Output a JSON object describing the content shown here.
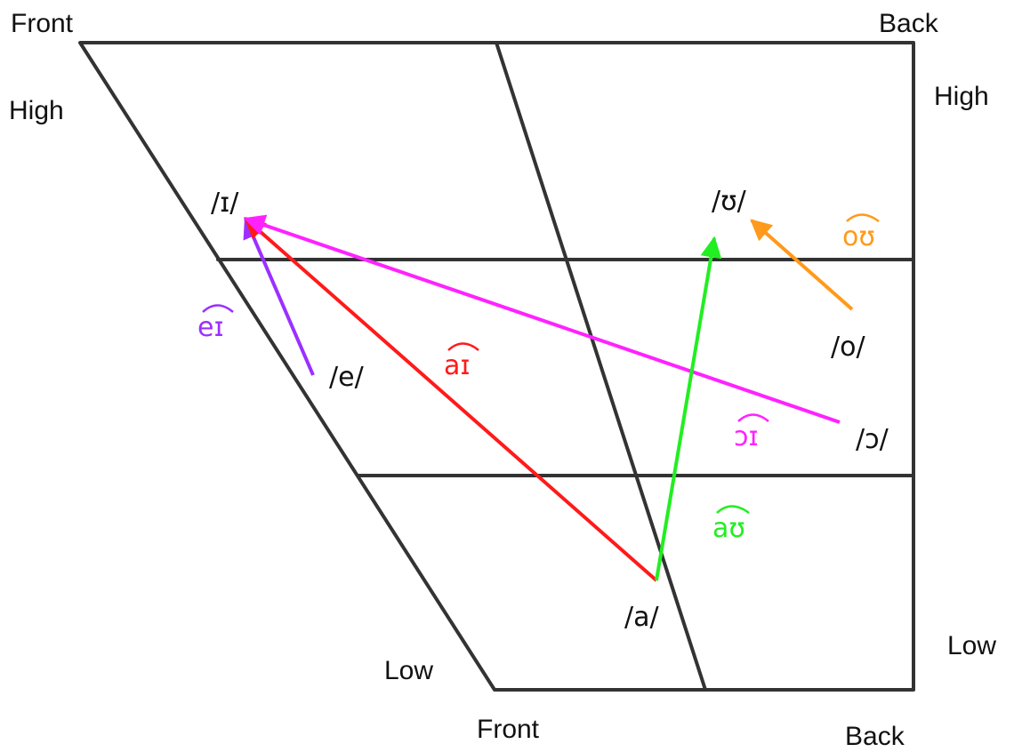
{
  "axis_labels": {
    "top_front": "Front",
    "top_back": "Back",
    "high_left": "High",
    "high_right": "High",
    "low_left": "Low",
    "low_right": "Low",
    "bottom_front": "Front",
    "bottom_back": "Back"
  },
  "vowels": {
    "i": "/ɪ/",
    "u": "/ʊ/",
    "e": "/e/",
    "o": "/o/",
    "open_o": "/ɔ/",
    "a": "/a/"
  },
  "diphthongs": [
    {
      "id": "ei",
      "label": "eɪ",
      "from": "/e/",
      "to": "/ɪ/",
      "color": "#9b30ff"
    },
    {
      "id": "ai",
      "label": "aɪ",
      "from": "/a/",
      "to": "/ɪ/",
      "color": "#ff1a1a"
    },
    {
      "id": "oi",
      "label": "ɔɪ",
      "from": "/ɔ/",
      "to": "/ɪ/",
      "color": "#ff22ff"
    },
    {
      "id": "au",
      "label": "aʊ",
      "from": "/a/",
      "to": "/ʊ/",
      "color": "#22ee22"
    },
    {
      "id": "ou",
      "label": "oʊ",
      "from": "/o/",
      "to": "/ʊ/",
      "color": "#ff9a1a"
    }
  ]
}
